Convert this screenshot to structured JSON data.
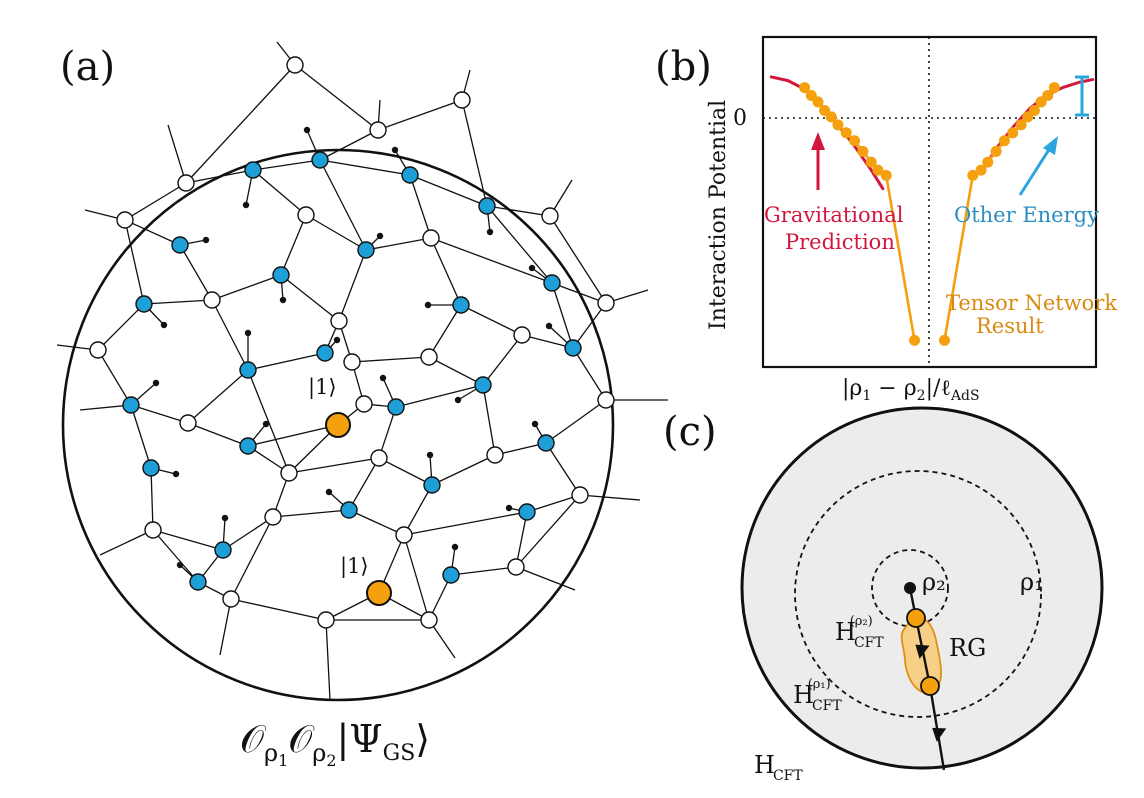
{
  "colors": {
    "blue_node": "#1f9fd8",
    "orange_node": "#f5a00f",
    "gravity": "#d4163c",
    "other_energy": "#2aa6dc",
    "tensor": "#f5a00f",
    "tensor_text": "#d88a10",
    "disk_fill": "#ececec",
    "rg_fill": "#f7cf86"
  },
  "panel_a": {
    "label": "(a)",
    "state_label": "|1⟩",
    "caption": "𝒪ρ₁𝒪ρ₂|ΨGS⟩",
    "caption_parts": {
      "o": "𝒪",
      "rho": "ρ",
      "sub1": "1",
      "sub2": "2",
      "psi_open": "|Ψ",
      "psi_sub": "GS",
      "psi_close": "⟩"
    }
  },
  "panel_b": {
    "label": "(b)",
    "ylabel": "Interaction Potential",
    "y_zero_label": "0",
    "xlabel_parts": {
      "open": "|ρ",
      "s1": "1",
      "minus": " − ρ",
      "s2": "2",
      "close": "|/ℓ",
      "sub": "AdS"
    },
    "gravity_text": [
      "Gravitational",
      "Prediction"
    ],
    "other_text": "Other Energy",
    "tensor_text": [
      "Tensor Network",
      "Result"
    ]
  },
  "panel_c": {
    "label": "(c)",
    "rho1": "ρ₁",
    "rho2": "ρ₂",
    "rg": "RG",
    "h_cft": "H",
    "cft": "CFT",
    "rho1_sup": "(ρ₁)",
    "rho2_sup": "(ρ₂)"
  },
  "chart_data": {
    "type": "scatter",
    "ylabel": "Interaction Potential",
    "xlabel": "|ρ1 − ρ2|/ℓAdS",
    "series": [
      {
        "name": "Tensor Network Result",
        "color": "#f5a00f",
        "x": [
          -7.5,
          -7.1,
          -6.7,
          -6.3,
          -5.9,
          -5.5,
          -5.0,
          -4.5,
          -4.0,
          -3.5,
          -3.1,
          -2.6,
          -0.9,
          0.9,
          2.6,
          3.1,
          3.5,
          4.0,
          4.5,
          5.0,
          5.5,
          5.9,
          6.3,
          6.7,
          7.1,
          7.5
        ],
        "y": [
          0.65,
          0.5,
          0.38,
          0.22,
          0.1,
          -0.05,
          -0.2,
          -0.35,
          -0.55,
          -0.75,
          -0.9,
          -1.0,
          -4.1,
          -4.1,
          -1.0,
          -0.9,
          -0.75,
          -0.55,
          -0.35,
          -0.2,
          -0.05,
          0.1,
          0.22,
          0.38,
          0.5,
          0.65
        ]
      },
      {
        "name": "Gravitational Prediction",
        "color": "#d4163c",
        "x": [
          -9.5,
          -8.5,
          -7.5,
          -6.5,
          -5.5,
          -4.5,
          -3.5,
          -2.8
        ],
        "y": [
          0.85,
          0.78,
          0.62,
          0.32,
          -0.05,
          -0.45,
          -0.9,
          -1.25
        ]
      },
      {
        "name": "Gravitational Prediction (right)",
        "color": "#d4163c",
        "x": [
          3.3,
          4.0,
          5.0,
          6.0,
          7.0,
          8.0,
          9.0,
          9.8
        ],
        "y": [
          -0.85,
          -0.5,
          -0.1,
          0.25,
          0.5,
          0.65,
          0.75,
          0.8
        ]
      }
    ],
    "xlim": [
      -10,
      10
    ],
    "ylim": [
      -4.6,
      1.6
    ]
  }
}
